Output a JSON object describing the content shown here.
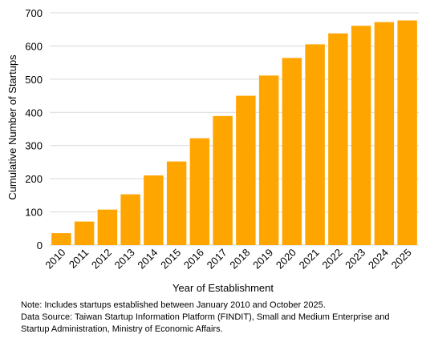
{
  "chart_data": {
    "type": "bar",
    "title": "",
    "xlabel": "Year of Establishment",
    "ylabel": "Cumulative Number of Startups",
    "categories": [
      "2010",
      "2011",
      "2012",
      "2013",
      "2014",
      "2015",
      "2016",
      "2017",
      "2018",
      "2019",
      "2020",
      "2021",
      "2022",
      "2023",
      "2024",
      "2025"
    ],
    "values": [
      36,
      71,
      107,
      153,
      210,
      252,
      322,
      389,
      450,
      511,
      564,
      605,
      638,
      661,
      672,
      677
    ],
    "ylim": [
      0,
      700
    ],
    "yticks": [
      "0",
      "100",
      "200",
      "300",
      "400",
      "500",
      "600",
      "700"
    ],
    "grid": true,
    "bar_color": "#FFA500",
    "grid_color": "#D9D9D9"
  },
  "notes": {
    "line1": "Note: Includes startups established between January 2010 and October 2025.",
    "line2": "Data Source: Taiwan Startup Information Platform (FINDIT), Small and Medium Enterprise and Startup Administration, Ministry of Economic Affairs."
  }
}
